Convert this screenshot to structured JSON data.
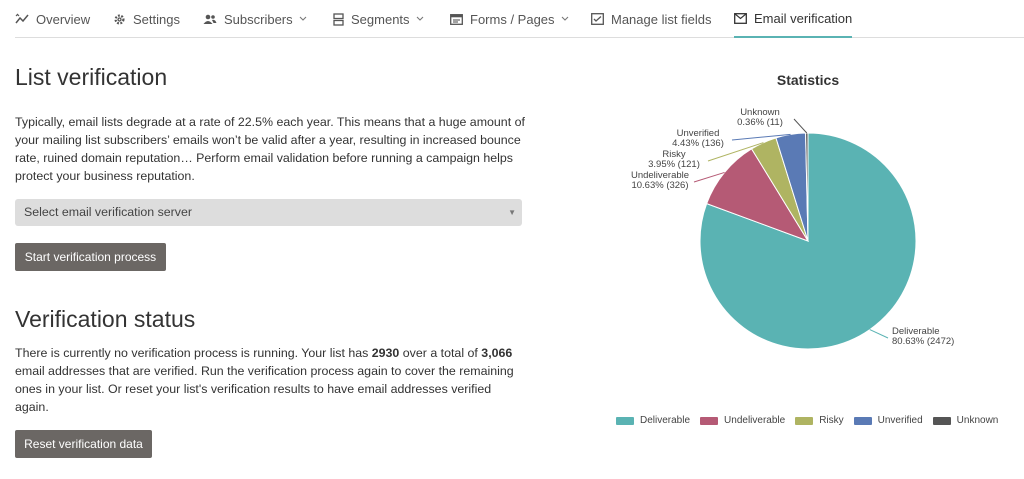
{
  "tabs": [
    {
      "label": "Overview",
      "icon": "overview-icon",
      "dropdown": false
    },
    {
      "label": "Settings",
      "icon": "gear-icon",
      "dropdown": false
    },
    {
      "label": "Subscribers",
      "icon": "users-icon",
      "dropdown": true
    },
    {
      "label": "Segments",
      "icon": "segments-icon",
      "dropdown": true
    },
    {
      "label": "Forms / Pages",
      "icon": "forms-icon",
      "dropdown": true
    },
    {
      "label": "Manage list fields",
      "icon": "list-fields-icon",
      "dropdown": false
    },
    {
      "label": "Email verification",
      "icon": "envelope-check-icon",
      "dropdown": false,
      "active": true
    }
  ],
  "list_verification": {
    "title": "List verification",
    "description": "Typically, email lists degrade at a rate of 22.5% each year. This means that a huge amount of your mailing list subscribers’ emails won’t be valid after a year, resulting in increased bounce rate, ruined domain reputation… Perform email validation before running a campaign helps protect your business reputation.",
    "server_select_placeholder": "Select email verification server",
    "start_button": "Start verification process"
  },
  "verification_status": {
    "title": "Verification status",
    "text_1": "There is currently no verification process is running. Your list has ",
    "verified_count": "2930",
    "text_2": " over a total of ",
    "total_count": "3,066",
    "text_3": " email addresses that are verified. Run the verification process again to cover the remaining ones in your list. Or reset your list's verification results to have email addresses verified again.",
    "reset_button": "Reset verification data"
  },
  "statistics": {
    "title": "Statistics"
  },
  "chart_data": {
    "type": "pie",
    "title": "Statistics",
    "legend_position": "bottom",
    "slices": [
      {
        "name": "Deliverable",
        "percent": "80.63%",
        "count": 2472,
        "color": "#5ab3b3"
      },
      {
        "name": "Undeliverable",
        "percent": "10.63%",
        "count": 326,
        "color": "#b55a75"
      },
      {
        "name": "Risky",
        "percent": "3.95%",
        "count": 121,
        "color": "#afb462"
      },
      {
        "name": "Unverified",
        "percent": "4.43%",
        "count": 136,
        "color": "#5a7ab5"
      },
      {
        "name": "Unknown",
        "percent": "0.36%",
        "count": 11,
        "color": "#555555"
      }
    ]
  },
  "colors": {
    "accent": "#5ab3b3",
    "button_bg": "#6b6764",
    "select_bg": "#dddddd"
  }
}
